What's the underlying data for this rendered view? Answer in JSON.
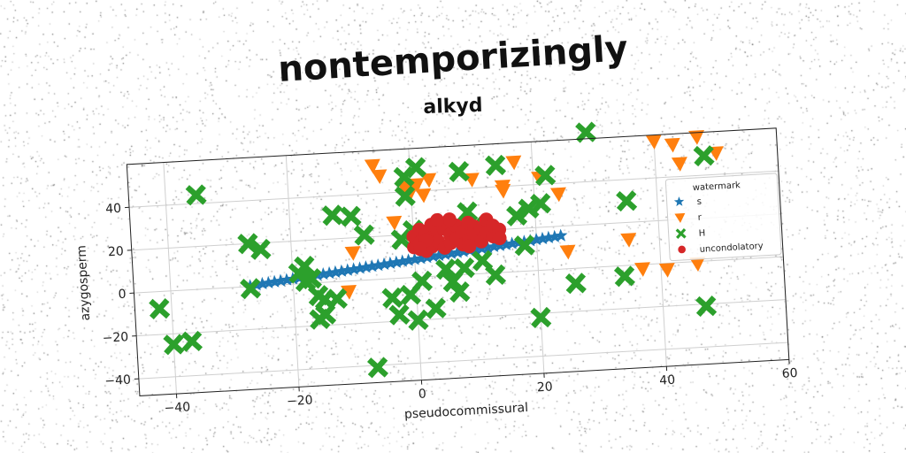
{
  "figure": {
    "title": "nontemporizingly",
    "subtitle": "alkyd"
  },
  "chart_data": {
    "type": "scatter",
    "title": "alkyd",
    "xlabel": "pseudocommissural",
    "ylabel": "azygosperm",
    "xlim": [
      -46,
      60
    ],
    "ylim": [
      -48,
      60
    ],
    "xticks": [
      -40,
      -20,
      0,
      20,
      40,
      60
    ],
    "yticks": [
      -40,
      -20,
      0,
      20,
      40
    ],
    "xtick_labels": [
      "−40",
      "−20",
      "0",
      "20",
      "40",
      "60"
    ],
    "ytick_labels": [
      "−40",
      "−20",
      "0",
      "20",
      "40"
    ],
    "grid": true,
    "legend": {
      "title": "watermark",
      "placement": "right"
    },
    "series": [
      {
        "name": "s",
        "marker": "star",
        "color": "#1f77b4",
        "points": [
          [
            -27,
            0.2
          ],
          [
            -26,
            0.5
          ],
          [
            -25,
            0.9
          ],
          [
            -24,
            1.2
          ],
          [
            -23,
            1.5
          ],
          [
            -22,
            1.8
          ],
          [
            -21,
            2.1
          ],
          [
            -20,
            2.4
          ],
          [
            -19,
            2.6
          ],
          [
            -18,
            2.9
          ],
          [
            -17,
            3.2
          ],
          [
            -16,
            3.5
          ],
          [
            -15,
            3.8
          ],
          [
            -14,
            4.1
          ],
          [
            -13,
            4.4
          ],
          [
            -12,
            4.7
          ],
          [
            -11,
            5.0
          ],
          [
            -10,
            5.3
          ],
          [
            -9,
            5.6
          ],
          [
            -8,
            5.9
          ],
          [
            -7,
            6.2
          ],
          [
            -6,
            6.5
          ],
          [
            -5,
            6.8
          ],
          [
            -4,
            7.1
          ],
          [
            -3,
            7.4
          ],
          [
            -2,
            7.7
          ],
          [
            -1,
            8.0
          ],
          [
            0,
            8.3
          ],
          [
            1,
            8.6
          ],
          [
            2,
            8.9
          ],
          [
            3,
            9.2
          ],
          [
            4,
            9.5
          ],
          [
            5,
            9.8
          ],
          [
            6,
            10.1
          ],
          [
            7,
            10.4
          ],
          [
            8,
            10.7
          ],
          [
            9,
            11.0
          ],
          [
            10,
            11.3
          ],
          [
            11,
            11.6
          ],
          [
            12,
            11.9
          ],
          [
            13,
            12.2
          ],
          [
            14,
            12.5
          ],
          [
            15,
            12.8
          ],
          [
            16,
            13.1
          ],
          [
            17,
            13.4
          ],
          [
            18,
            13.7
          ],
          [
            19,
            14.0
          ],
          [
            20,
            14.3
          ],
          [
            21,
            14.6
          ],
          [
            22,
            14.9
          ],
          [
            23,
            15.2
          ],
          [
            24,
            15.5
          ]
        ]
      },
      {
        "name": "r",
        "marker": "triangle-down",
        "color": "#ff7f0e",
        "points": [
          [
            -6,
            53
          ],
          [
            -5,
            48
          ],
          [
            -1,
            42
          ],
          [
            0,
            40
          ],
          [
            1,
            43
          ],
          [
            3,
            45
          ],
          [
            10,
            44
          ],
          [
            15,
            38
          ],
          [
            15,
            40
          ],
          [
            21,
            43
          ],
          [
            24,
            35
          ],
          [
            25,
            8
          ],
          [
            40,
            57
          ],
          [
            43,
            55
          ],
          [
            44,
            46
          ],
          [
            47,
            58
          ],
          [
            50,
            50
          ],
          [
            35,
            12
          ],
          [
            37,
            -2
          ],
          [
            41,
            -3
          ],
          [
            46,
            -1
          ],
          [
            -3,
            26
          ],
          [
            -10,
            13
          ],
          [
            -11,
            -5
          ],
          [
            2,
            38
          ],
          [
            17,
            51
          ]
        ]
      },
      {
        "name": "H",
        "marker": "x",
        "color": "#2ca02c",
        "points": [
          [
            -42,
            -8
          ],
          [
            -40,
            -25
          ],
          [
            -37,
            -24
          ],
          [
            -35,
            44
          ],
          [
            -27,
            20
          ],
          [
            -25,
            17
          ],
          [
            -27,
            -1
          ],
          [
            -19,
            5
          ],
          [
            -18,
            1
          ],
          [
            -17,
            2
          ],
          [
            -18,
            8
          ],
          [
            -16,
            -6
          ],
          [
            -15,
            -8
          ],
          [
            -15,
            -15
          ],
          [
            -16,
            -17
          ],
          [
            -13,
            -8
          ],
          [
            -13,
            31
          ],
          [
            -10,
            30
          ],
          [
            -8,
            21
          ],
          [
            -7,
            -41
          ],
          [
            -4,
            -9
          ],
          [
            -2,
            18
          ],
          [
            -1,
            47
          ],
          [
            -1,
            38
          ],
          [
            0,
            22
          ],
          [
            1,
            51
          ],
          [
            -1,
            -8
          ],
          [
            1,
            -2
          ],
          [
            3,
            -15
          ],
          [
            5,
            3
          ],
          [
            6,
            -3
          ],
          [
            7,
            -8
          ],
          [
            8,
            3
          ],
          [
            8,
            48
          ],
          [
            9,
            29
          ],
          [
            10,
            22
          ],
          [
            11,
            6
          ],
          [
            13,
            -1
          ],
          [
            14,
            50
          ],
          [
            17,
            26
          ],
          [
            18,
            12
          ],
          [
            19,
            29
          ],
          [
            20,
            -22
          ],
          [
            21,
            31
          ],
          [
            22,
            44
          ],
          [
            26,
            -7
          ],
          [
            29,
            63
          ],
          [
            34,
            -5
          ],
          [
            35,
            30
          ],
          [
            47,
            -21
          ],
          [
            48,
            49
          ],
          [
            -3,
            -17
          ],
          [
            0,
            -20
          ]
        ]
      },
      {
        "name": "uncondolatory",
        "marker": "circle",
        "color": "#d62728",
        "points": [
          [
            0,
            14
          ],
          [
            0,
            19
          ],
          [
            1,
            22
          ],
          [
            1,
            16
          ],
          [
            2,
            20
          ],
          [
            2,
            12
          ],
          [
            3,
            18
          ],
          [
            3,
            24
          ],
          [
            3,
            14
          ],
          [
            4,
            21
          ],
          [
            4,
            16
          ],
          [
            5,
            22
          ],
          [
            5,
            13
          ],
          [
            6,
            19
          ],
          [
            6,
            15
          ],
          [
            7,
            23
          ],
          [
            7,
            17
          ],
          [
            8,
            20
          ],
          [
            8,
            14
          ],
          [
            9,
            24
          ],
          [
            9,
            16
          ],
          [
            10,
            22
          ],
          [
            10,
            18
          ],
          [
            11,
            15
          ],
          [
            11,
            21
          ],
          [
            12,
            25
          ],
          [
            12,
            19
          ],
          [
            13,
            17
          ],
          [
            13,
            22
          ],
          [
            14,
            20
          ],
          [
            14,
            16
          ],
          [
            6,
            26
          ],
          [
            4,
            26
          ],
          [
            9,
            13
          ],
          [
            2,
            17
          ],
          [
            1,
            13
          ]
        ]
      }
    ]
  }
}
